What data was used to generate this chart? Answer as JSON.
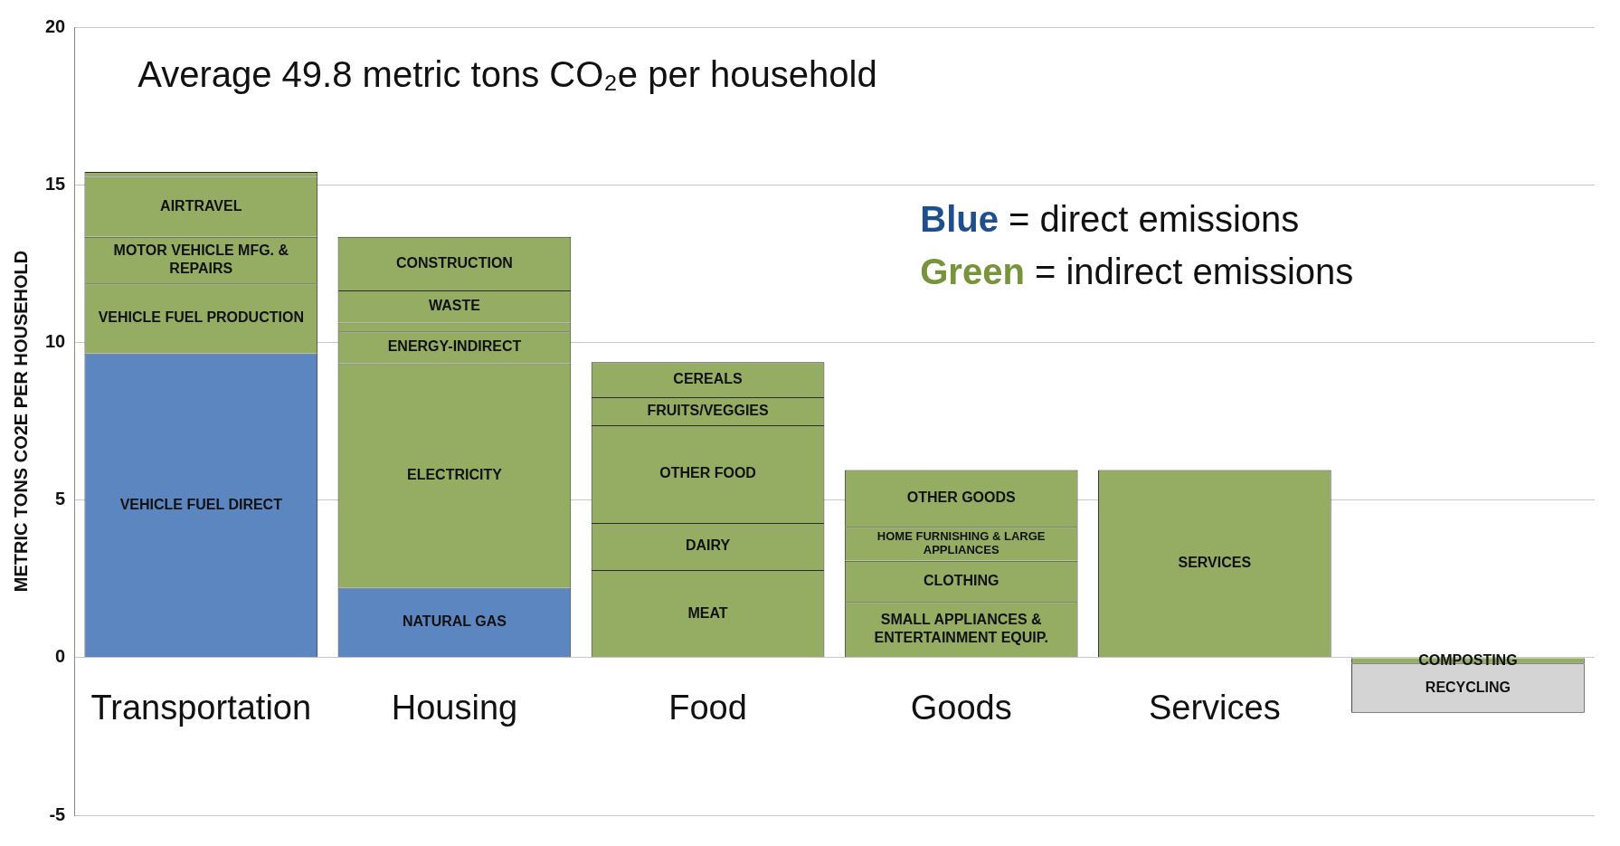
{
  "chart_data": {
    "type": "bar",
    "title": "Average 49.8 metric tons CO₂e per household",
    "ylabel": "METRIC TONS CO2E PER HOUSEHOLD",
    "categories": [
      "Transportation",
      "Housing",
      "Food",
      "Goods",
      "Services",
      null
    ],
    "stacked": true,
    "ylim": [
      -5,
      20
    ],
    "yticks": [
      -5,
      0,
      5,
      10,
      15,
      20
    ],
    "grid": "y",
    "legend": false,
    "annotations": [
      "Blue = direct emissions",
      "Green = indirect emissions"
    ],
    "series": [
      {
        "name": "VEHICLE FUEL DIRECT",
        "color": "#5b86bf",
        "values": [
          9.65,
          null,
          null,
          null,
          null,
          null
        ]
      },
      {
        "name": "NATURAL GAS",
        "color": "#5b86bf",
        "values": [
          null,
          2.22,
          null,
          null,
          null,
          null
        ]
      },
      {
        "name": "MEAT",
        "color": "#94ad63",
        "values": [
          null,
          null,
          2.78,
          null,
          null,
          null
        ]
      },
      {
        "name": "SMALL APPLIANCES & ENTERTAINMENT EQUIP.",
        "color": "#94ad63",
        "values": [
          null,
          null,
          null,
          1.77,
          null,
          null
        ]
      },
      {
        "name": "SERVICES",
        "color": "#94ad63",
        "values": [
          null,
          null,
          null,
          null,
          5.95,
          null
        ]
      },
      {
        "name": "COMPOSTING",
        "color": "#94ad63",
        "values": [
          null,
          null,
          null,
          null,
          null,
          -0.2
        ]
      },
      {
        "name": "VEHICLE FUEL PRODUCTION",
        "color": "#94ad63",
        "values": [
          2.22,
          null,
          null,
          null,
          null,
          null
        ]
      },
      {
        "name": "ELECTRICITY",
        "color": "#94ad63",
        "values": [
          null,
          7.12,
          null,
          null,
          null,
          null
        ]
      },
      {
        "name": "DAIRY",
        "color": "#94ad63",
        "values": [
          null,
          null,
          1.49,
          null,
          null,
          null
        ]
      },
      {
        "name": "CLOTHING",
        "color": "#94ad63",
        "values": [
          null,
          null,
          null,
          1.3,
          null,
          null
        ]
      },
      {
        "name": "RECYCLING",
        "color": "#d4d4d4",
        "values": [
          null,
          null,
          null,
          null,
          null,
          -1.55
        ]
      },
      {
        "name": "MOTOR VEHICLE MFG. & REPAIRS",
        "color": "#94ad63",
        "values": [
          1.48,
          null,
          null,
          null,
          null,
          null
        ]
      },
      {
        "name": "ENERGY-INDIRECT",
        "color": "#94ad63",
        "values": [
          null,
          1.01,
          null,
          null,
          null,
          null
        ]
      },
      {
        "name": "OTHER FOOD",
        "color": "#94ad63",
        "values": [
          null,
          null,
          3.1,
          null,
          null,
          null
        ]
      },
      {
        "name": "HOME FURNISHING & LARGE APPLIANCES",
        "color": "#94ad63",
        "values": [
          null,
          null,
          null,
          1.08,
          null,
          null
        ]
      },
      {
        "name": "AIRTRAVEL",
        "color": "#94ad63",
        "values": [
          1.9,
          null,
          null,
          null,
          null,
          null
        ]
      },
      {
        "color": "#94ad63",
        "values": [
          null,
          0.28,
          null,
          null,
          null,
          null
        ]
      },
      {
        "name": "FRUITS/VEGGIES",
        "color": "#94ad63",
        "values": [
          null,
          null,
          0.89,
          null,
          null,
          null
        ]
      },
      {
        "name": "OTHER GOODS",
        "color": "#94ad63",
        "values": [
          null,
          null,
          null,
          1.8,
          null,
          null
        ]
      },
      {
        "color": "#94ad63",
        "values": [
          0.16,
          null,
          null,
          null,
          null,
          null
        ]
      },
      {
        "name": "WASTE",
        "color": "#94ad63",
        "values": [
          null,
          1.02,
          null,
          null,
          null,
          null
        ]
      },
      {
        "name": "CEREALS",
        "color": "#94ad63",
        "values": [
          null,
          null,
          1.11,
          null,
          null,
          null
        ]
      },
      {
        "name": "CONSTRUCTION",
        "color": "#94ad63",
        "values": [
          null,
          1.7,
          null,
          null,
          null,
          null
        ]
      }
    ]
  }
}
